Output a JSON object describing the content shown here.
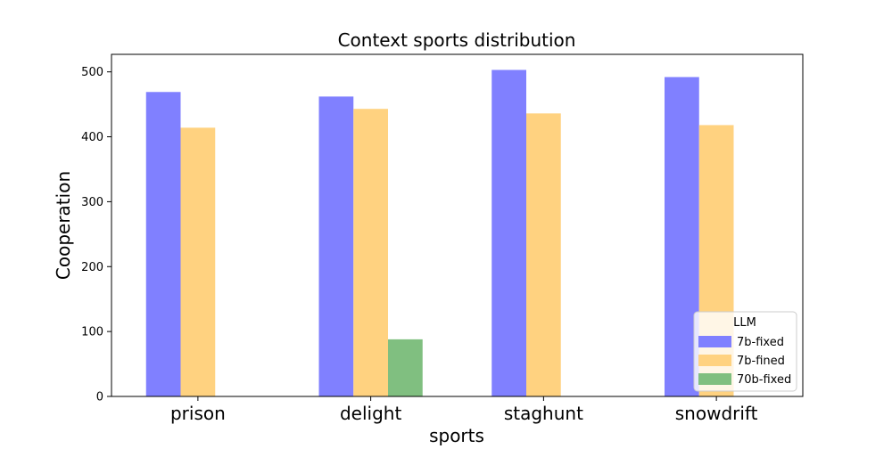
{
  "chart_data": {
    "type": "bar",
    "title": "Context sports distribution",
    "xlabel": "sports",
    "ylabel": "Cooperation",
    "categories": [
      "prison",
      "delight",
      "staghunt",
      "snowdrift"
    ],
    "series": [
      {
        "name": "7b-fixed",
        "color": "#8080ff",
        "values": [
          469,
          462,
          503,
          492
        ]
      },
      {
        "name": "7b-fined",
        "color": "#ffd280",
        "values": [
          414,
          443,
          436,
          418
        ]
      },
      {
        "name": "70b-fixed",
        "color": "#80bf80",
        "values": [
          0,
          88,
          0,
          0
        ]
      }
    ],
    "ylim": [
      0,
      527
    ],
    "yticks": [
      0,
      100,
      200,
      300,
      400,
      500
    ],
    "grid": false,
    "legend": {
      "title": "LLM",
      "position": "lower-right"
    }
  }
}
